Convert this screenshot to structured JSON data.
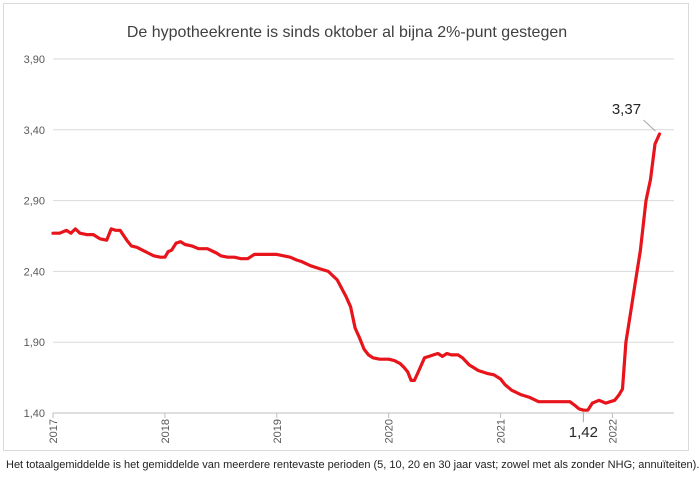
{
  "footnote": "Het totaalgemiddelde is het gemiddelde van meerdere rentevaste perioden (5, 10, 20 en 30 jaar vast; zowel met als zonder NHG; annuïteiten).",
  "chart_data": {
    "type": "line",
    "title": "De hypotheekrente is sinds oktober al bijna 2%-punt gestegen",
    "xlabel": "",
    "ylabel": "",
    "ylim": [
      1.4,
      3.9
    ],
    "yticks": [
      "1,40",
      "1,90",
      "2,40",
      "2,90",
      "3,40",
      "3,90"
    ],
    "ytick_values": [
      1.4,
      1.9,
      2.4,
      2.9,
      3.4,
      3.9
    ],
    "xlim": [
      2017.0,
      2022.55
    ],
    "xticks": [
      "2017",
      "2018",
      "2019",
      "2020",
      "2021",
      "2022"
    ],
    "xtick_values": [
      2017,
      2018,
      2019,
      2020,
      2021,
      2022
    ],
    "grid": true,
    "line_color": "#e8141b",
    "series": [
      {
        "name": "",
        "x": [
          2017.0,
          2017.06,
          2017.12,
          2017.16,
          2017.2,
          2017.24,
          2017.3,
          2017.36,
          2017.42,
          2017.48,
          2017.52,
          2017.56,
          2017.6,
          2017.66,
          2017.7,
          2017.75,
          2017.8,
          2017.85,
          2017.9,
          2017.96,
          2018.0,
          2018.03,
          2018.06,
          2018.1,
          2018.14,
          2018.18,
          2018.24,
          2018.3,
          2018.38,
          2018.46,
          2018.5,
          2018.56,
          2018.62,
          2018.68,
          2018.74,
          2018.8,
          2018.9,
          2019.0,
          2019.06,
          2019.12,
          2019.18,
          2019.22,
          2019.3,
          2019.38,
          2019.46,
          2019.5,
          2019.54,
          2019.58,
          2019.62,
          2019.66,
          2019.7,
          2019.74,
          2019.78,
          2019.82,
          2019.86,
          2019.92,
          2020.0,
          2020.05,
          2020.1,
          2020.14,
          2020.17,
          2020.2,
          2020.23,
          2020.27,
          2020.32,
          2020.36,
          2020.4,
          2020.44,
          2020.48,
          2020.52,
          2020.56,
          2020.62,
          2020.66,
          2020.72,
          2020.8,
          2020.88,
          2020.94,
          2021.0,
          2021.04,
          2021.1,
          2021.18,
          2021.26,
          2021.34,
          2021.42,
          2021.5,
          2021.56,
          2021.62,
          2021.67,
          2021.7,
          2021.74,
          2021.78,
          2021.82,
          2021.88,
          2021.94,
          2021.98,
          2022.02,
          2022.06,
          2022.09,
          2022.12,
          2022.16,
          2022.2,
          2022.25,
          2022.3,
          2022.34,
          2022.38,
          2022.42
        ],
        "values": [
          2.67,
          2.67,
          2.69,
          2.67,
          2.7,
          2.67,
          2.66,
          2.66,
          2.63,
          2.62,
          2.7,
          2.69,
          2.69,
          2.62,
          2.58,
          2.57,
          2.55,
          2.53,
          2.51,
          2.5,
          2.5,
          2.54,
          2.55,
          2.6,
          2.61,
          2.59,
          2.58,
          2.56,
          2.56,
          2.53,
          2.51,
          2.5,
          2.5,
          2.49,
          2.49,
          2.52,
          2.52,
          2.52,
          2.51,
          2.5,
          2.48,
          2.47,
          2.44,
          2.42,
          2.4,
          2.37,
          2.34,
          2.28,
          2.22,
          2.15,
          2.0,
          1.93,
          1.85,
          1.81,
          1.79,
          1.78,
          1.78,
          1.77,
          1.75,
          1.72,
          1.69,
          1.63,
          1.63,
          1.7,
          1.79,
          1.8,
          1.81,
          1.82,
          1.8,
          1.82,
          1.81,
          1.81,
          1.79,
          1.74,
          1.7,
          1.68,
          1.67,
          1.64,
          1.6,
          1.56,
          1.53,
          1.51,
          1.48,
          1.48,
          1.48,
          1.48,
          1.48,
          1.45,
          1.43,
          1.42,
          1.42,
          1.47,
          1.49,
          1.47,
          1.48,
          1.49,
          1.53,
          1.57,
          1.9,
          2.1,
          2.3,
          2.55,
          2.9,
          3.05,
          3.3,
          3.37
        ]
      }
    ],
    "annotations": [
      {
        "label": "3,37",
        "x": 2022.42,
        "y": 3.37
      },
      {
        "label": "1,42",
        "x": 2021.74,
        "y": 1.42
      }
    ]
  }
}
